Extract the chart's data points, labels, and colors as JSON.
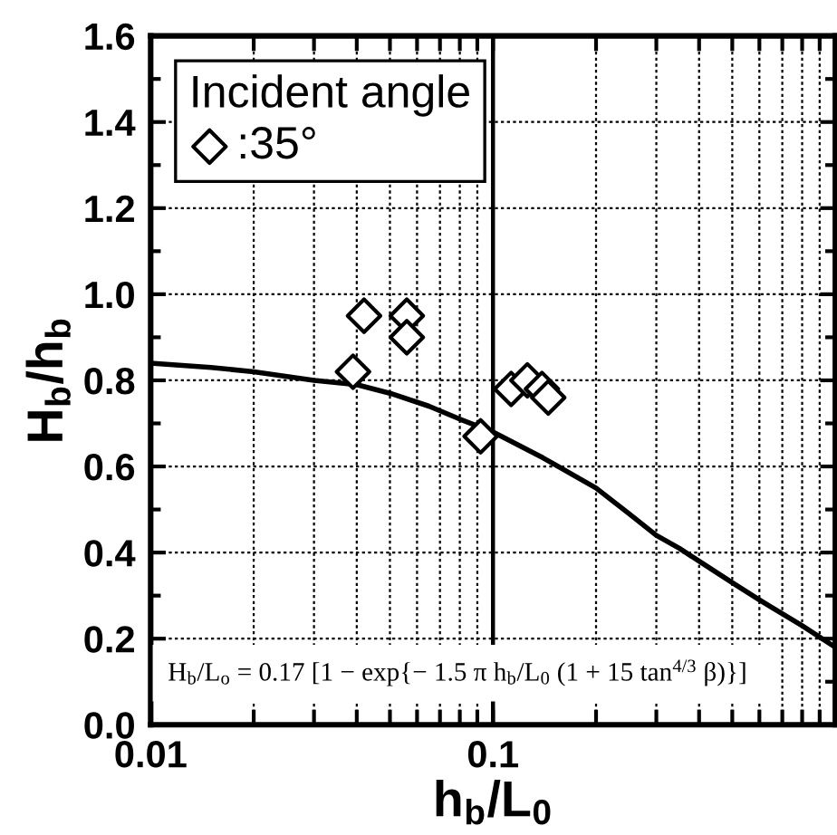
{
  "chart_data": {
    "type": "scatter",
    "xlabel": "h$_{b}$/L$_{0}$",
    "ylabel": "H$_{b}$/h$_{b}$",
    "legend_title": "Incident angle",
    "legend": "top left",
    "log": "x",
    "grid": true,
    "xlim": [
      0.01,
      1
    ],
    "xticks": [
      0.01,
      {
        "value": 0.02,
        "label": null
      },
      {
        "value": 0.03,
        "label": null
      },
      {
        "value": 0.04,
        "label": null
      },
      {
        "value": 0.05,
        "label": null
      },
      {
        "value": 0.06,
        "label": null
      },
      {
        "value": 0.07,
        "label": null
      },
      {
        "value": 0.08,
        "label": null
      },
      {
        "value": 0.09,
        "label": null
      },
      0.1,
      {
        "value": 0.2,
        "label": null
      },
      {
        "value": 0.3,
        "label": null
      },
      {
        "value": 0.4,
        "label": null
      },
      {
        "value": 0.5,
        "label": null
      },
      {
        "value": 0.6,
        "label": null
      },
      {
        "value": 0.7,
        "label": null
      },
      {
        "value": 0.8,
        "label": null
      },
      {
        "value": 0.9,
        "label": null
      }
    ],
    "ylim": [
      0,
      1.6
    ],
    "yticks": [
      {
        "value": 0,
        "label": "0.0"
      },
      0.2,
      0.4,
      0.6,
      0.8,
      {
        "value": 1,
        "label": "1.0"
      },
      1.2,
      1.4,
      1.6
    ],
    "ref_lines": [
      {
        "axis": "x",
        "value": 0.1,
        "color": "#000000",
        "line_style": "solid"
      }
    ],
    "annotations": [
      "H$_{b}$/L$_{o}$ = 0.17 [1 − exp{− 1.5 π h$_{b}$/L$_{0}$ (1 + 15 tan$^{4/3}$ β)}]"
    ],
    "series": [
      {
        "type": "line",
        "color": "#000000",
        "marker": "none",
        "line_style": "solid",
        "x": [
          0.01,
          0.015,
          0.02,
          0.03,
          0.04,
          0.05,
          0.065,
          0.08,
          0.1,
          0.14,
          0.2,
          0.25,
          0.3,
          0.35,
          0.4,
          0.5,
          0.6,
          0.66,
          0.8,
          1.0
        ],
        "values": [
          0.84,
          0.83,
          0.82,
          0.8,
          0.79,
          0.77,
          0.74,
          0.71,
          0.68,
          0.62,
          0.55,
          0.49,
          0.44,
          0.41,
          0.38,
          0.33,
          0.29,
          0.27,
          0.23,
          0.18
        ]
      },
      {
        "name": ":35°",
        "color": "#000000",
        "marker": "diamond",
        "x": [
          0.039,
          0.042,
          0.056,
          0.056,
          0.092,
          0.113,
          0.126,
          0.139,
          0.145
        ],
        "values": [
          0.82,
          0.95,
          0.95,
          0.9,
          0.67,
          0.78,
          0.8,
          0.78,
          0.76
        ]
      }
    ]
  }
}
